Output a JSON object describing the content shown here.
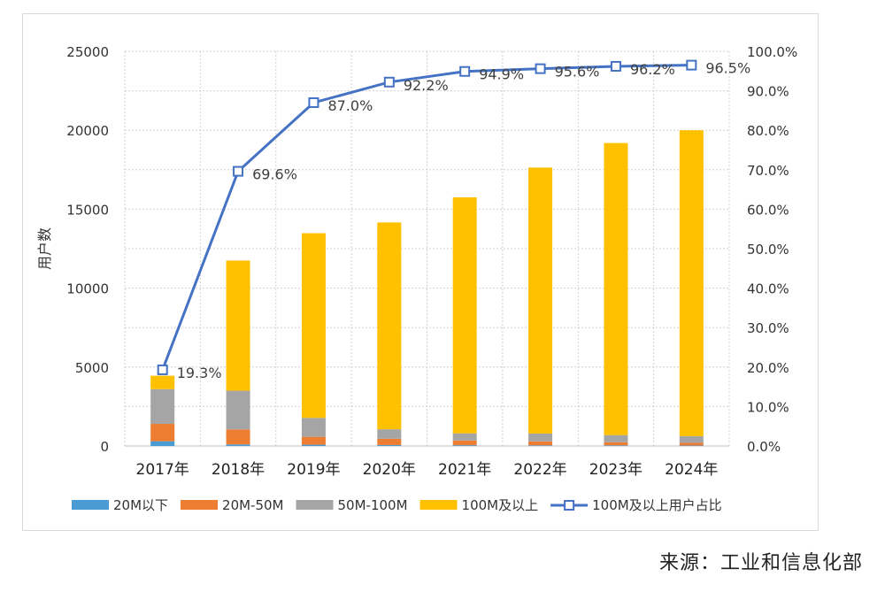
{
  "source_note": "来源：工业和信息化部",
  "chart_data": {
    "type": "bar",
    "stacked": true,
    "categories": [
      "2017年",
      "2018年",
      "2019年",
      "2020年",
      "2021年",
      "2022年",
      "2023年",
      "2024年"
    ],
    "series": [
      {
        "name": "20M以下",
        "values": [
          300,
          100,
          80,
          60,
          50,
          40,
          40,
          30
        ],
        "color": "#4a9ad4"
      },
      {
        "name": "20M-50M",
        "values": [
          1100,
          950,
          500,
          400,
          300,
          250,
          200,
          170
        ],
        "color": "#ed7d31"
      },
      {
        "name": "50M-100M",
        "values": [
          2200,
          2450,
          1200,
          600,
          450,
          500,
          450,
          420
        ],
        "color": "#a5a5a5"
      },
      {
        "name": "100M及以上",
        "values": [
          850,
          8250,
          11700,
          13100,
          14950,
          16850,
          18500,
          19380
        ],
        "color": "#ffc000"
      }
    ],
    "line_series": {
      "name": "100M及以上用户占比",
      "values": [
        19.3,
        69.6,
        87.0,
        92.2,
        94.9,
        95.6,
        96.2,
        96.5
      ],
      "labels": [
        "19.3%",
        "69.6%",
        "87.0%",
        "92.2%",
        "94.9%",
        "95.6%",
        "96.2%",
        "96.5%"
      ],
      "color": "#4472c4",
      "axis": "right"
    },
    "ylabel": "用户数",
    "ylim": [
      0,
      25000
    ],
    "yticks": [
      "0",
      "5000",
      "10000",
      "15000",
      "20000",
      "25000"
    ],
    "y2lim": [
      0,
      100
    ],
    "y2ticks": [
      "0.0%",
      "10.0%",
      "20.0%",
      "30.0%",
      "40.0%",
      "50.0%",
      "60.0%",
      "70.0%",
      "80.0%",
      "90.0%",
      "100.0%"
    ],
    "grid": true,
    "legend_position": "bottom"
  }
}
